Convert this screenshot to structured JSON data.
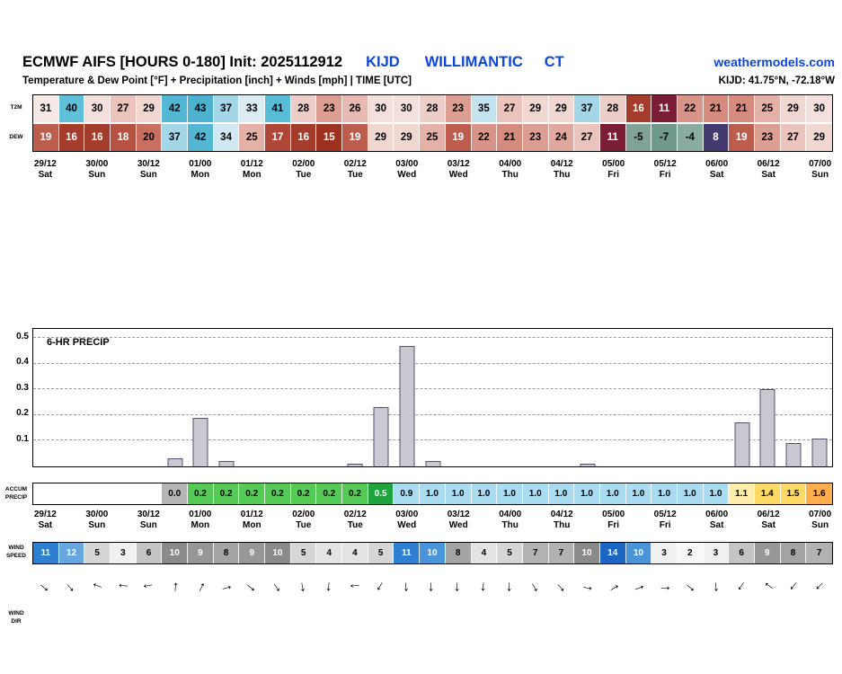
{
  "header": {
    "title": "ECMWF AIFS [HOURS 0-180] Init: 2025112912",
    "station_id": "KIJD",
    "station_name": "WILLIMANTIC",
    "station_state": "CT",
    "site_link": "weathermodels.com",
    "subtitle": "Temperature & Dew Point [°F] + Precipitation [inch] + Winds [mph] | TIME [UTC]",
    "station_coords": "KIJD: 41.75°N, -72.18°W"
  },
  "colors": {
    "accent_blue": "#0a46dd",
    "bar_fill": "#c9c9d2",
    "bar_border": "#50506e"
  },
  "row_labels": {
    "t2m": "T2M",
    "dew": "DEW",
    "accum_line1": "ACCUM",
    "accum_line2": "PRECIP",
    "wind_speed_line1": "WIND",
    "wind_speed_line2": "SPEED",
    "wind_dir_line1": "WIND",
    "wind_dir_line2": "DIR"
  },
  "time_axis": [
    {
      "time": "29/12",
      "day": "Sat"
    },
    {
      "time": "30/00",
      "day": "Sun"
    },
    {
      "time": "30/12",
      "day": "Sun"
    },
    {
      "time": "01/00",
      "day": "Mon"
    },
    {
      "time": "01/12",
      "day": "Mon"
    },
    {
      "time": "02/00",
      "day": "Tue"
    },
    {
      "time": "02/12",
      "day": "Tue"
    },
    {
      "time": "03/00",
      "day": "Wed"
    },
    {
      "time": "03/12",
      "day": "Wed"
    },
    {
      "time": "04/00",
      "day": "Thu"
    },
    {
      "time": "04/12",
      "day": "Thu"
    },
    {
      "time": "05/00",
      "day": "Fri"
    },
    {
      "time": "05/12",
      "day": "Fri"
    },
    {
      "time": "06/00",
      "day": "Sat"
    },
    {
      "time": "06/12",
      "day": "Sat"
    },
    {
      "time": "07/00",
      "day": "Sun"
    }
  ],
  "t2m": {
    "values": [
      "31",
      "40",
      "30",
      "27",
      "29",
      "42",
      "43",
      "37",
      "33",
      "41",
      "28",
      "23",
      "26",
      "30",
      "30",
      "28",
      "23",
      "35",
      "27",
      "29",
      "29",
      "37",
      "28",
      "16",
      "11",
      "22",
      "21",
      "21",
      "25",
      "29",
      "30"
    ],
    "bg": [
      "#f6e9e6",
      "#5fc0da",
      "#f3e0dc",
      "#eac4bd",
      "#f0d7d2",
      "#53b7d3",
      "#4db2d0",
      "#a3d6e6",
      "#dbedf3",
      "#59bcd7",
      "#edcdc7",
      "#dc9e93",
      "#e6bab2",
      "#f3e0dc",
      "#f3e0dc",
      "#edcdc7",
      "#dc9e93",
      "#c3e3ee",
      "#eac4bd",
      "#f0d7d2",
      "#f0d7d2",
      "#a3d6e6",
      "#edcdc7",
      "#a43c2c",
      "#7b1e35",
      "#d89488",
      "#d58b7e",
      "#d58b7e",
      "#e3b1a8",
      "#f0d7d2",
      "#f3e0dc"
    ],
    "fg": [
      "#000",
      "#000",
      "#000",
      "#000",
      "#000",
      "#000",
      "#000",
      "#000",
      "#000",
      "#000",
      "#000",
      "#000",
      "#000",
      "#000",
      "#000",
      "#000",
      "#000",
      "#000",
      "#000",
      "#000",
      "#000",
      "#000",
      "#000",
      "#fff",
      "#fff",
      "#000",
      "#000",
      "#000",
      "#000",
      "#000",
      "#000"
    ]
  },
  "dew": {
    "values": [
      "19",
      "16",
      "16",
      "18",
      "20",
      "37",
      "42",
      "34",
      "25",
      "17",
      "16",
      "15",
      "19",
      "29",
      "29",
      "25",
      "19",
      "22",
      "21",
      "23",
      "24",
      "27",
      "11",
      "-5",
      "-7",
      "-4",
      "8",
      "19",
      "23",
      "27",
      "29"
    ],
    "bg": [
      "#bc5d4d",
      "#a43c2c",
      "#a43c2c",
      "#b55242",
      "#c96f60",
      "#a3d6e6",
      "#53b7d3",
      "#cfe8f1",
      "#e3b1a8",
      "#ae4737",
      "#a43c2c",
      "#9d3220",
      "#bc5d4d",
      "#f0d7d2",
      "#f0d7d2",
      "#e3b1a8",
      "#bc5d4d",
      "#d89488",
      "#d58b7e",
      "#dc9e93",
      "#dfa79d",
      "#eac4bd",
      "#7b1e35",
      "#7fa497",
      "#6f998b",
      "#8aaca0",
      "#443a70",
      "#bc5d4d",
      "#dc9e93",
      "#eac4bd",
      "#f0d7d2"
    ],
    "fg": [
      "#fff",
      "#fff",
      "#fff",
      "#fff",
      "#000",
      "#000",
      "#000",
      "#000",
      "#000",
      "#fff",
      "#fff",
      "#fff",
      "#fff",
      "#000",
      "#000",
      "#000",
      "#fff",
      "#000",
      "#000",
      "#000",
      "#000",
      "#000",
      "#fff",
      "#000",
      "#000",
      "#000",
      "#fff",
      "#fff",
      "#000",
      "#000",
      "#000"
    ]
  },
  "accum": {
    "values": [
      "",
      "",
      "",
      "",
      "",
      "0.0",
      "0.2",
      "0.2",
      "0.2",
      "0.2",
      "0.2",
      "0.2",
      "0.2",
      "0.5",
      "0.9",
      "1.0",
      "1.0",
      "1.0",
      "1.0",
      "1.0",
      "1.0",
      "1.0",
      "1.0",
      "1.0",
      "1.0",
      "1.0",
      "1.0",
      "1.1",
      "1.4",
      "1.5",
      "1.6"
    ],
    "bg": [
      "#ffffff",
      "#ffffff",
      "#ffffff",
      "#ffffff",
      "#ffffff",
      "#b5b5b5",
      "#56ca56",
      "#56ca56",
      "#56ca56",
      "#56ca56",
      "#56ca56",
      "#56ca56",
      "#56ca56",
      "#1da43c",
      "#a9dcf0",
      "#a9dcf0",
      "#a9dcf0",
      "#a9dcf0",
      "#a9dcf0",
      "#a9dcf0",
      "#a9dcf0",
      "#a9dcf0",
      "#a9dcf0",
      "#a9dcf0",
      "#a9dcf0",
      "#a9dcf0",
      "#a9dcf0",
      "#ffedae",
      "#ffd966",
      "#ffd966",
      "#ffad4d"
    ],
    "fg": [
      "#000",
      "#000",
      "#000",
      "#000",
      "#000",
      "#000",
      "#000",
      "#000",
      "#000",
      "#000",
      "#000",
      "#000",
      "#000",
      "#fff",
      "#000",
      "#000",
      "#000",
      "#000",
      "#000",
      "#000",
      "#000",
      "#000",
      "#000",
      "#000",
      "#000",
      "#000",
      "#000",
      "#000",
      "#000",
      "#000",
      "#000"
    ]
  },
  "wind_speed": {
    "values": [
      "11",
      "12",
      "5",
      "3",
      "6",
      "10",
      "9",
      "8",
      "9",
      "10",
      "5",
      "4",
      "4",
      "5",
      "11",
      "10",
      "8",
      "4",
      "5",
      "7",
      "7",
      "10",
      "14",
      "10",
      "3",
      "2",
      "3",
      "6",
      "9",
      "8",
      "7"
    ],
    "bg": [
      "#2e7fd2",
      "#67a7e0",
      "#d6d6d6",
      "#f0f0f0",
      "#c4c4c4",
      "#8a8a8a",
      "#979797",
      "#a4a4a4",
      "#979797",
      "#8a8a8a",
      "#d6d6d6",
      "#e3e3e3",
      "#e3e3e3",
      "#d6d6d6",
      "#2e7fd2",
      "#4a95da",
      "#a4a4a4",
      "#e3e3e3",
      "#d6d6d6",
      "#b2b2b2",
      "#b2b2b2",
      "#8a8a8a",
      "#1a66c2",
      "#4a95da",
      "#f0f0f0",
      "#f8f8f8",
      "#f0f0f0",
      "#c4c4c4",
      "#979797",
      "#a4a4a4",
      "#b2b2b2"
    ],
    "fg": [
      "#fff",
      "#fff",
      "#000",
      "#000",
      "#000",
      "#fff",
      "#fff",
      "#000",
      "#fff",
      "#fff",
      "#000",
      "#000",
      "#000",
      "#000",
      "#fff",
      "#fff",
      "#000",
      "#000",
      "#000",
      "#000",
      "#000",
      "#fff",
      "#fff",
      "#fff",
      "#000",
      "#000",
      "#000",
      "#000",
      "#fff",
      "#000",
      "#000"
    ]
  },
  "wind_dir_deg": [
    40,
    50,
    200,
    185,
    170,
    275,
    295,
    345,
    40,
    55,
    80,
    95,
    175,
    120,
    85,
    90,
    90,
    95,
    90,
    60,
    50,
    10,
    330,
    340,
    0,
    40,
    85,
    125,
    215,
    130,
    135
  ],
  "chart_data": {
    "type": "bar",
    "title": "6-HR PRECIP",
    "units": "inch",
    "ylim": [
      0,
      0.5
    ],
    "ytick_labels": [
      "0.1",
      "0.2",
      "0.3",
      "0.4",
      "0.5"
    ],
    "grid": "horizontal-dashed",
    "legend": "none",
    "columns": 31,
    "values": [
      0,
      0,
      0,
      0,
      0,
      0.03,
      0.19,
      0.02,
      0,
      0,
      0,
      0,
      0.01,
      0.23,
      0.47,
      0.02,
      0,
      0,
      0,
      0,
      0,
      0.01,
      0,
      0,
      0,
      0,
      0,
      0.17,
      0.3,
      0.09,
      0.11
    ],
    "x_tick_labels": [
      "29/12 Sat",
      "30/00 Sun",
      "30/12 Sun",
      "01/00 Mon",
      "01/12 Mon",
      "02/00 Tue",
      "02/12 Tue",
      "03/00 Wed",
      "03/12 Wed",
      "04/00 Thu",
      "04/12 Thu",
      "05/00 Fri",
      "05/12 Fri",
      "06/00 Sat",
      "06/12 Sat",
      "07/00 Sun"
    ]
  }
}
